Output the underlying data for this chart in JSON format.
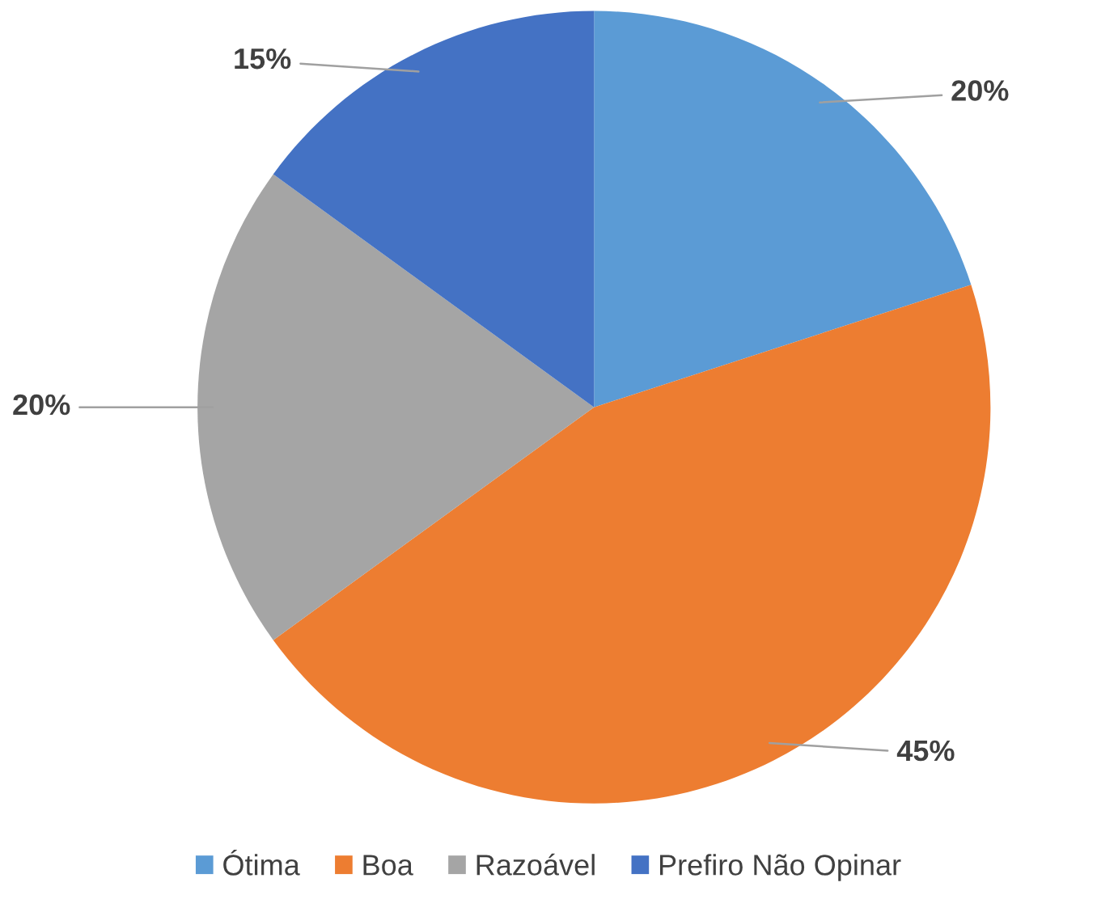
{
  "chart_data": {
    "type": "pie",
    "categories": [
      "Ótima",
      "Boa",
      "Razoável",
      "Prefiro Não Opinar"
    ],
    "values": [
      20,
      45,
      20,
      15
    ],
    "value_labels": [
      "20%",
      "45%",
      "20%",
      "15%"
    ],
    "colors": [
      "#5b9bd5",
      "#ed7d31",
      "#a5a5a5",
      "#4472c4"
    ],
    "legend": "bottom"
  }
}
